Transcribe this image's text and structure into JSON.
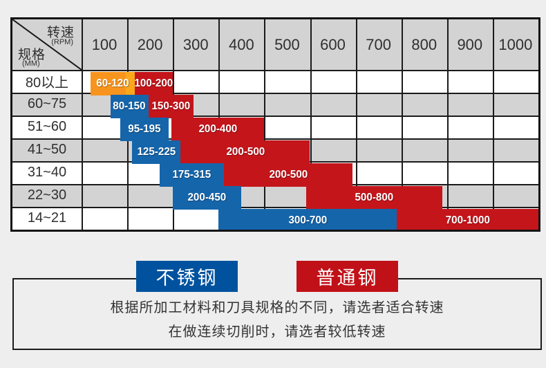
{
  "table": {
    "corner": {
      "top_label": "转速",
      "top_sub": "(RPM)",
      "left_label": "规格",
      "left_sub": "(MM)"
    }
  },
  "chart_data": {
    "type": "table",
    "col_axis": {
      "label": "转速",
      "unit": "RPM",
      "ticks": [
        "100",
        "200",
        "300",
        "400",
        "500",
        "600",
        "700",
        "800",
        "900",
        "1000"
      ]
    },
    "row_axis": {
      "label": "规格",
      "unit": "MM"
    },
    "legend_note": "blue = 不锈钢 (stainless steel), red = 普通钢 (ordinary steel)",
    "rows": [
      {
        "spec": "80以上",
        "bars": [
          {
            "color": "orange",
            "label": "60-120",
            "rpm_start": 60,
            "rpm_end": 120,
            "start_u": 0.2,
            "end_u": 1.17
          },
          {
            "color": "red",
            "label": "100-200",
            "rpm_start": 100,
            "rpm_end": 200,
            "start_u": 1.17,
            "end_u": 2.0
          }
        ]
      },
      {
        "spec": "60~75",
        "bars": [
          {
            "color": "blue",
            "label": "80-150",
            "rpm_start": 80,
            "rpm_end": 150,
            "start_u": 0.63,
            "end_u": 1.47
          },
          {
            "color": "red",
            "label": "150-300",
            "rpm_start": 150,
            "rpm_end": 300,
            "start_u": 1.47,
            "end_u": 2.45
          }
        ]
      },
      {
        "spec": "51~60",
        "bars": [
          {
            "color": "blue",
            "label": "95-195",
            "rpm_start": 95,
            "rpm_end": 195,
            "start_u": 0.85,
            "end_u": 1.9
          },
          {
            "color": "red",
            "label": "200-400",
            "rpm_start": 200,
            "rpm_end": 400,
            "start_u": 1.97,
            "end_u": 4.0
          }
        ]
      },
      {
        "spec": "41~50",
        "bars": [
          {
            "color": "blue",
            "label": "125-225",
            "rpm_start": 125,
            "rpm_end": 225,
            "start_u": 1.11,
            "end_u": 2.17
          },
          {
            "color": "red",
            "label": "200-500",
            "rpm_start": 200,
            "rpm_end": 500,
            "start_u": 2.17,
            "end_u": 5.0
          }
        ]
      },
      {
        "spec": "31~40",
        "bars": [
          {
            "color": "blue",
            "label": "175-315",
            "rpm_start": 175,
            "rpm_end": 315,
            "start_u": 1.71,
            "end_u": 3.12
          },
          {
            "color": "red",
            "label": "200-500",
            "rpm_start": 200,
            "rpm_end": 500,
            "start_u": 3.12,
            "end_u": 5.93
          }
        ]
      },
      {
        "spec": "22~30",
        "bars": [
          {
            "color": "blue",
            "label": "200-450",
            "rpm_start": 200,
            "rpm_end": 450,
            "start_u": 2.0,
            "end_u": 3.5
          },
          {
            "color": "red",
            "label": "500-800",
            "rpm_start": 500,
            "rpm_end": 800,
            "start_u": 4.92,
            "end_u": 7.9
          }
        ]
      },
      {
        "spec": "14~21",
        "bars": [
          {
            "color": "blue",
            "label": "300-700",
            "rpm_start": 300,
            "rpm_end": 700,
            "start_u": 3.0,
            "end_u": 6.9
          },
          {
            "color": "red",
            "label": "700-1000",
            "rpm_start": 700,
            "rpm_end": 1000,
            "start_u": 6.9,
            "end_u": 10.0
          }
        ]
      }
    ]
  },
  "legend": [
    {
      "label": "不锈钢",
      "color": "#01529e"
    },
    {
      "label": "普通钢",
      "color": "#c11118"
    }
  ],
  "notes": [
    "根据所加工材料和刀具规格的不同，请选者适合转速",
    "在做连续切削时，请选者较低转速"
  ],
  "colors": {
    "stainless_bar": "#1565ab",
    "ordinary_bar": "#c4151b",
    "orange_bar": "#f7941e",
    "legend_blue": "#01529e",
    "legend_red": "#c11118",
    "grid_line": "#1a1a1a",
    "gray_row": "#d3d3d4",
    "page_bg": "#eeeeef"
  }
}
